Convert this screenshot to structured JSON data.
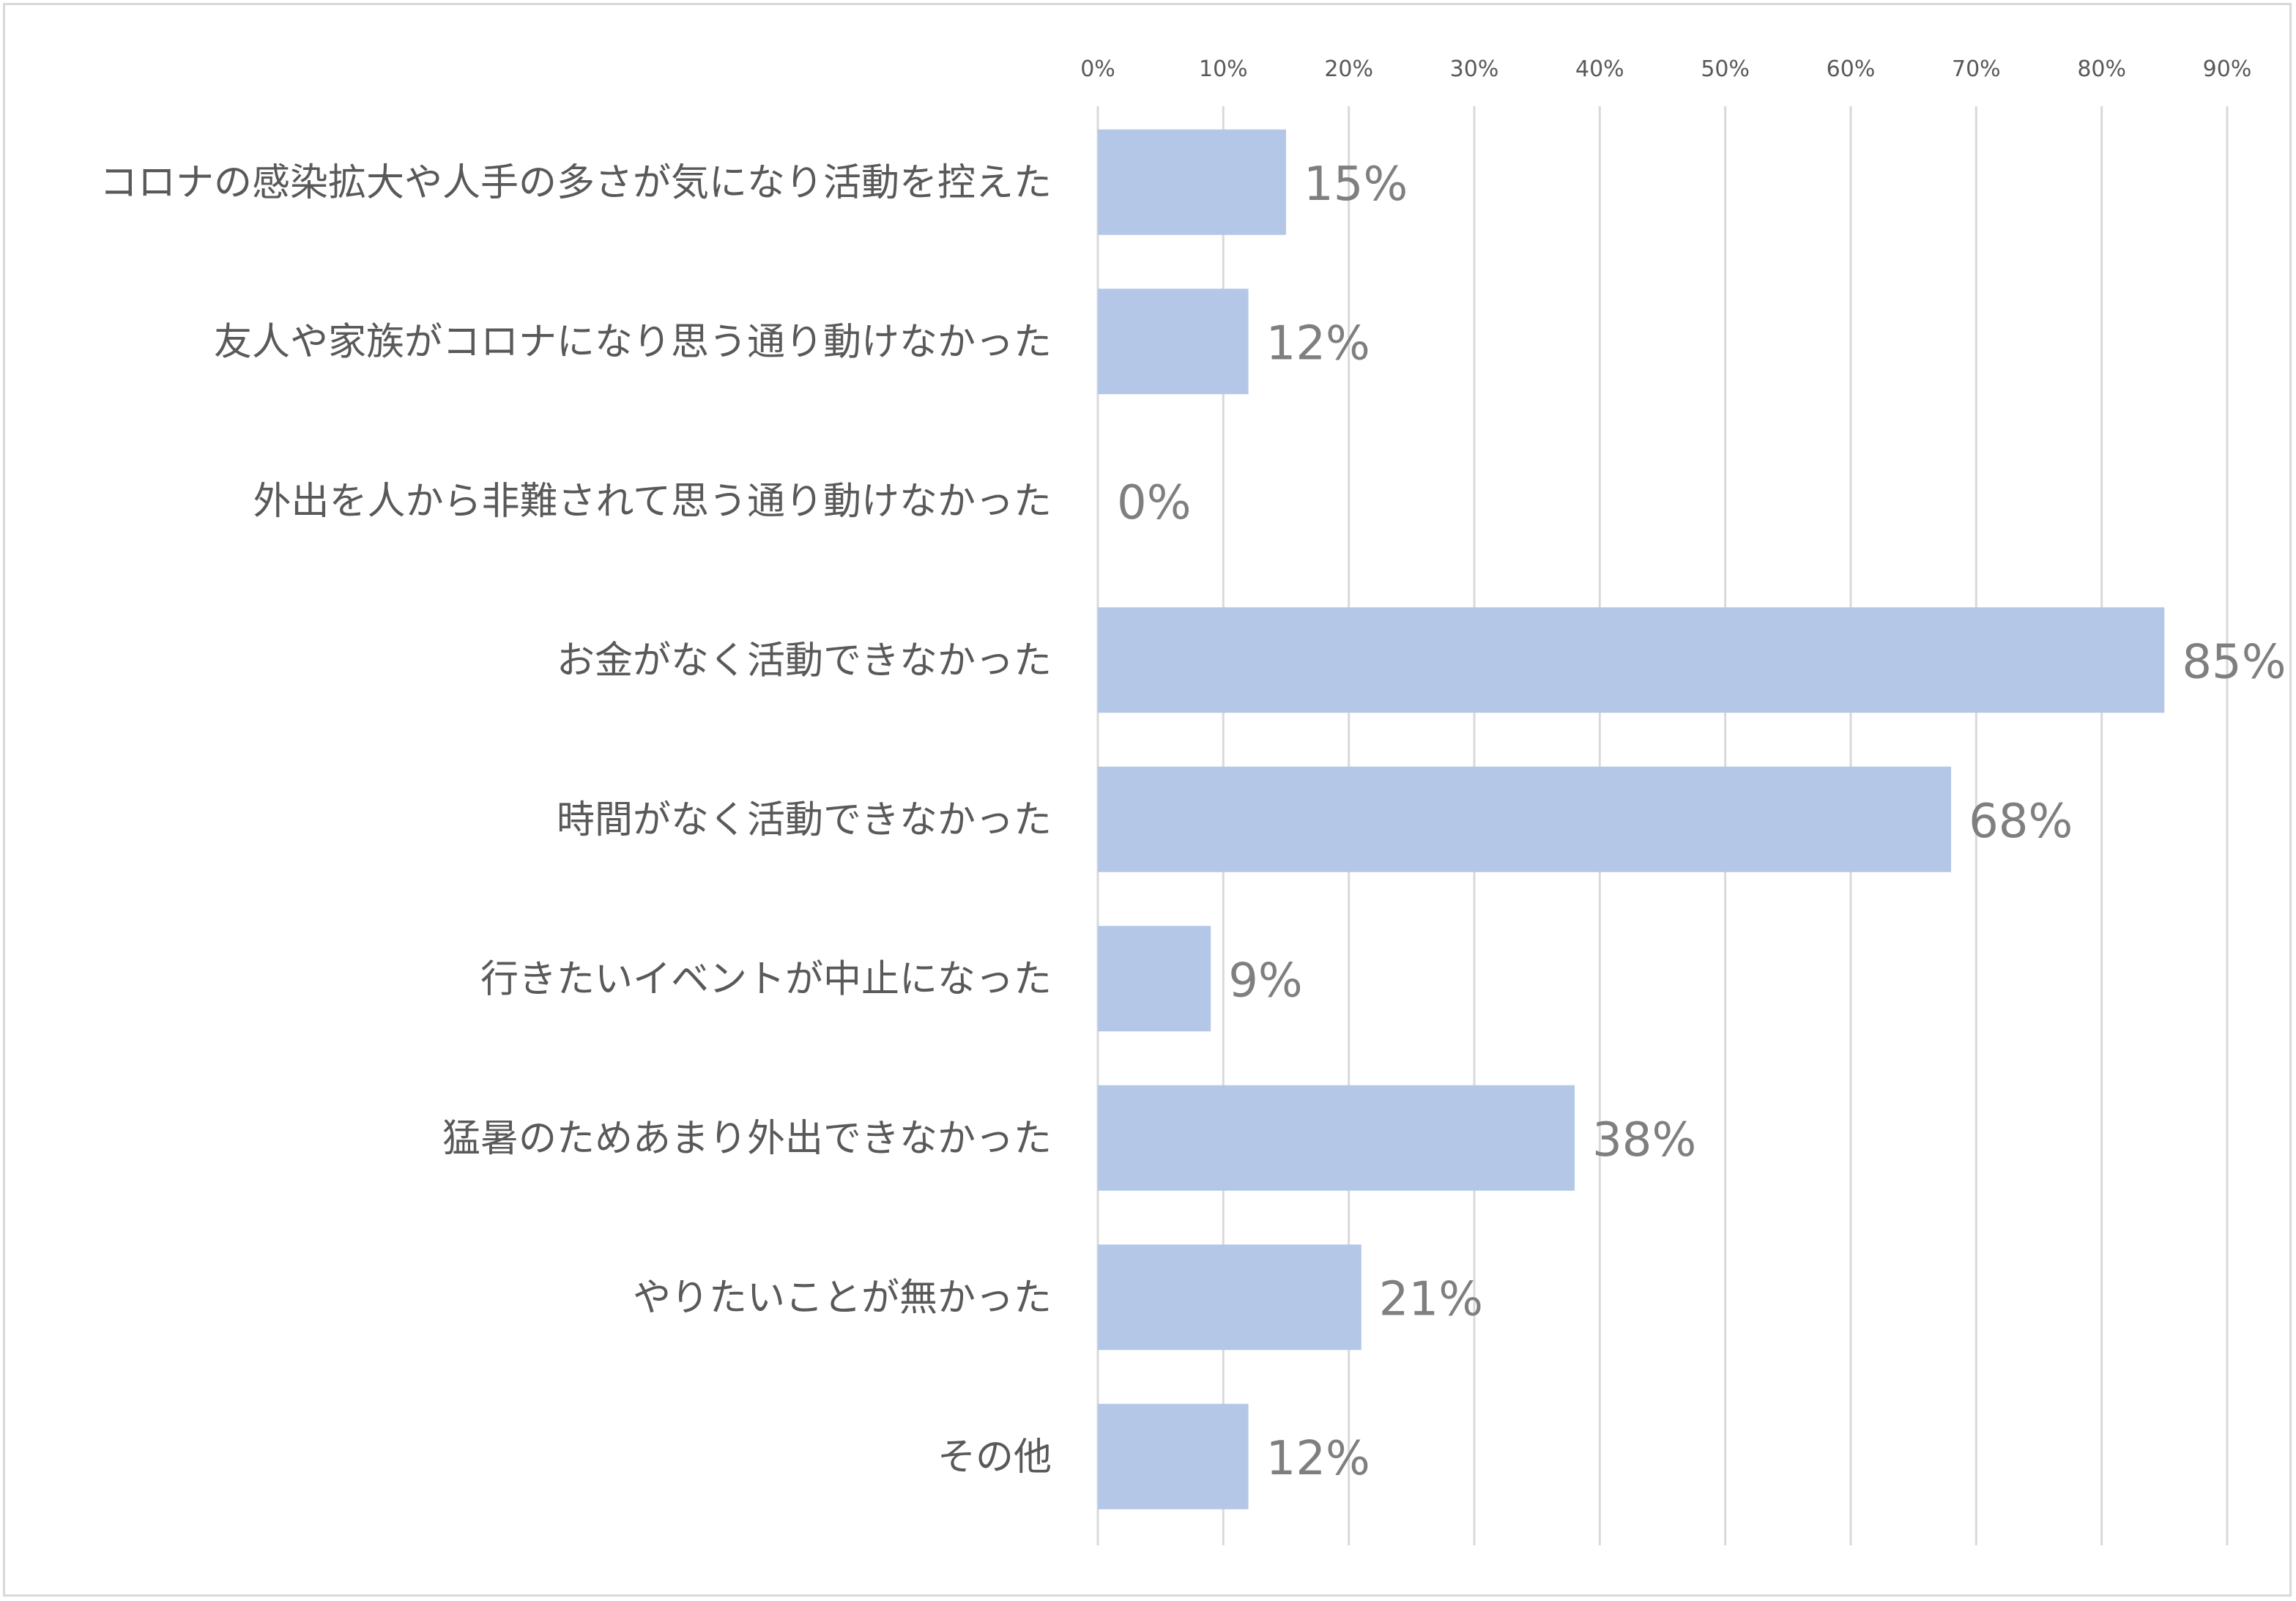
{
  "chart_data": {
    "type": "bar",
    "orientation": "horizontal",
    "categories": [
      "コロナの感染拡大や人手の多さが気になり活動を控えた",
      "友人や家族がコロナになり思う通り動けなかった",
      "外出を人から非難されて思う通り動けなかった",
      "お金がなく活動できなかった",
      "時間がなく活動できなかった",
      "行きたいイベントが中止になった",
      "猛暑のためあまり外出できなかった",
      "やりたいことが無かった",
      "その他"
    ],
    "values": [
      15,
      12,
      0,
      85,
      68,
      9,
      38,
      21,
      12
    ],
    "value_labels": [
      "15%",
      "12%",
      "0%",
      "85%",
      "68%",
      "9%",
      "38%",
      "21%",
      "12%"
    ],
    "x_ticks": [
      0,
      10,
      20,
      30,
      40,
      50,
      60,
      70,
      80,
      90
    ],
    "x_tick_labels": [
      "0%",
      "10%",
      "20%",
      "30%",
      "40%",
      "50%",
      "60%",
      "70%",
      "80%",
      "90%"
    ],
    "xlim": [
      0,
      90
    ],
    "x_axis_position": "top",
    "grid": true,
    "title": "",
    "xlabel": "",
    "ylabel": "",
    "colors": {
      "bar": "#b4c7e7",
      "grid": "#d9d9d9",
      "text": "#595959",
      "data_label": "#7f7f7f"
    }
  }
}
